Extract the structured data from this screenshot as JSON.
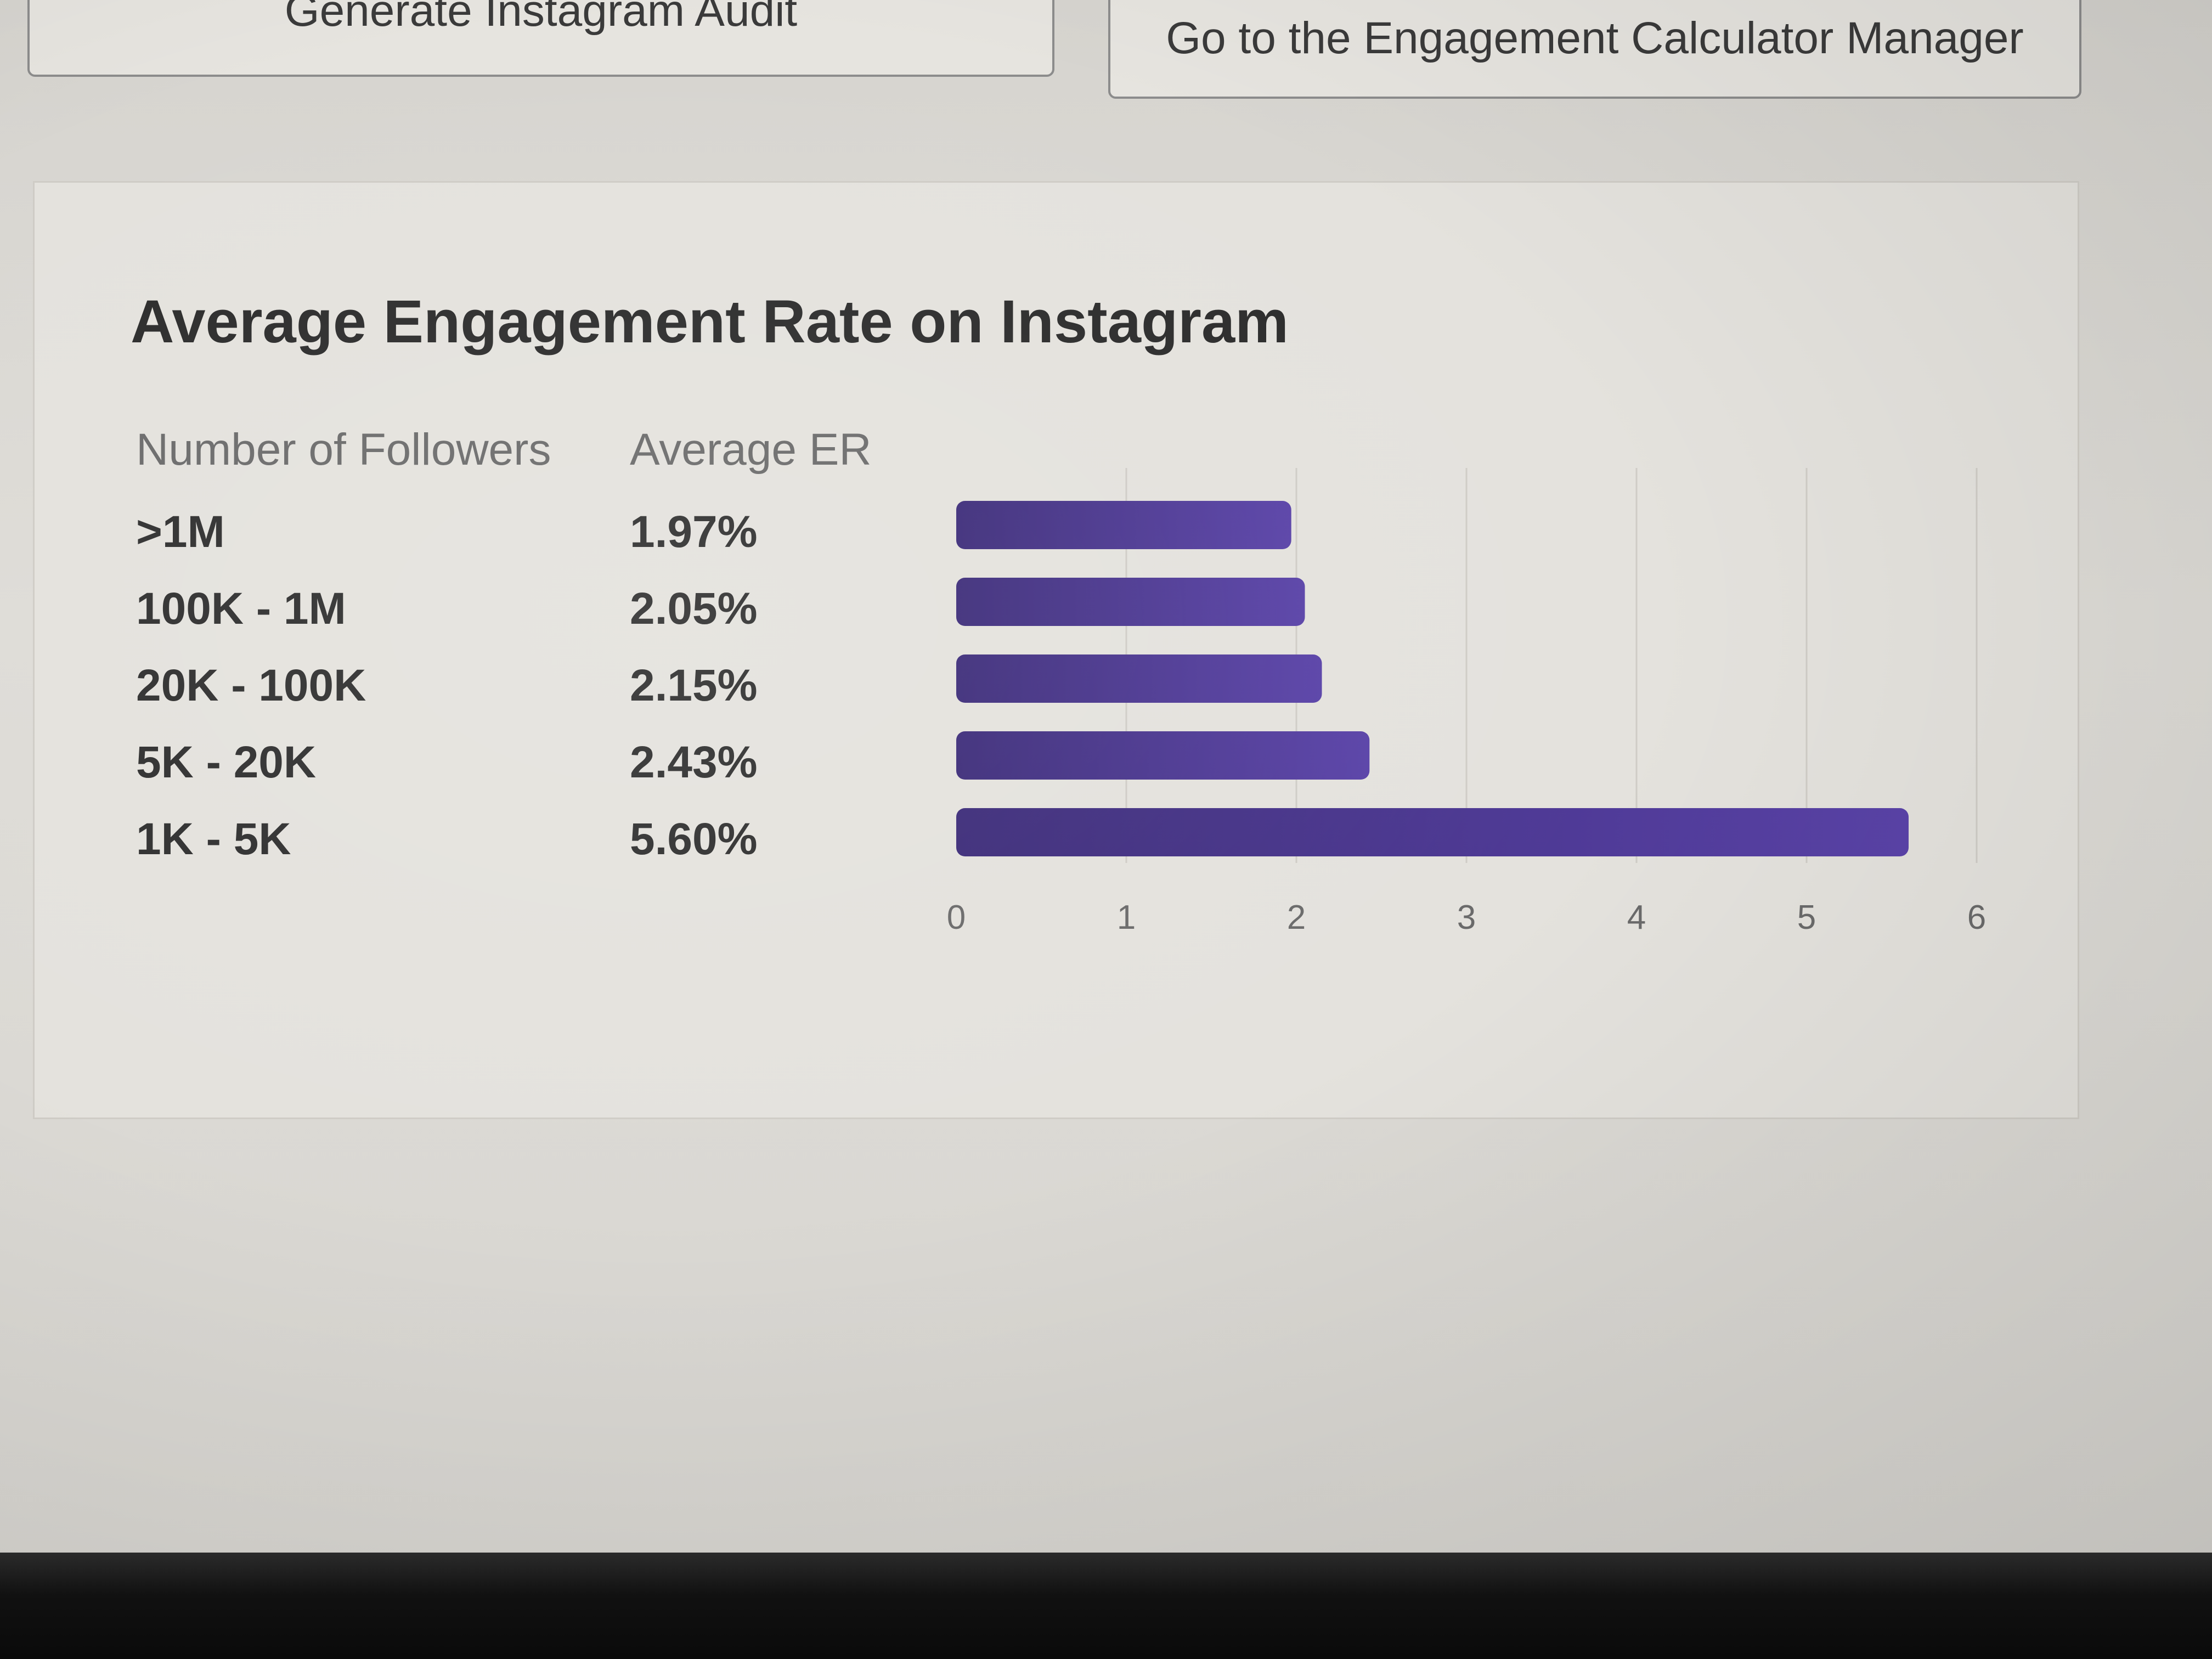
{
  "buttons": {
    "audit_label": "Generate Instagram Audit",
    "manager_label": "Go to the Engagement Calculator Manager"
  },
  "card": {
    "title": "Average Engagement Rate on Instagram",
    "col_followers": "Number of Followers",
    "col_er": "Average ER"
  },
  "rows": [
    {
      "label": ">1M",
      "value": "1.97%"
    },
    {
      "label": "100K - 1M",
      "value": "2.05%"
    },
    {
      "label": "20K - 100K",
      "value": "2.15%"
    },
    {
      "label": "5K - 20K",
      "value": "2.43%"
    },
    {
      "label": "1K - 5K",
      "value": "5.60%"
    }
  ],
  "chart_data": {
    "type": "bar",
    "orientation": "horizontal",
    "title": "Average Engagement Rate on Instagram",
    "categories": [
      ">1M",
      "100K - 1M",
      "20K - 100K",
      "5K - 20K",
      "1K - 5K"
    ],
    "values": [
      1.97,
      2.05,
      2.15,
      2.43,
      5.6
    ],
    "xlim": [
      0,
      6
    ],
    "xticks": [
      "0",
      "1",
      "2",
      "3",
      "4",
      "5",
      "6"
    ],
    "xlabel": "",
    "ylabel": "Number of Followers",
    "grid": true,
    "bar_color": "#3b2a78",
    "bar_color_end": "#5a43a8"
  }
}
